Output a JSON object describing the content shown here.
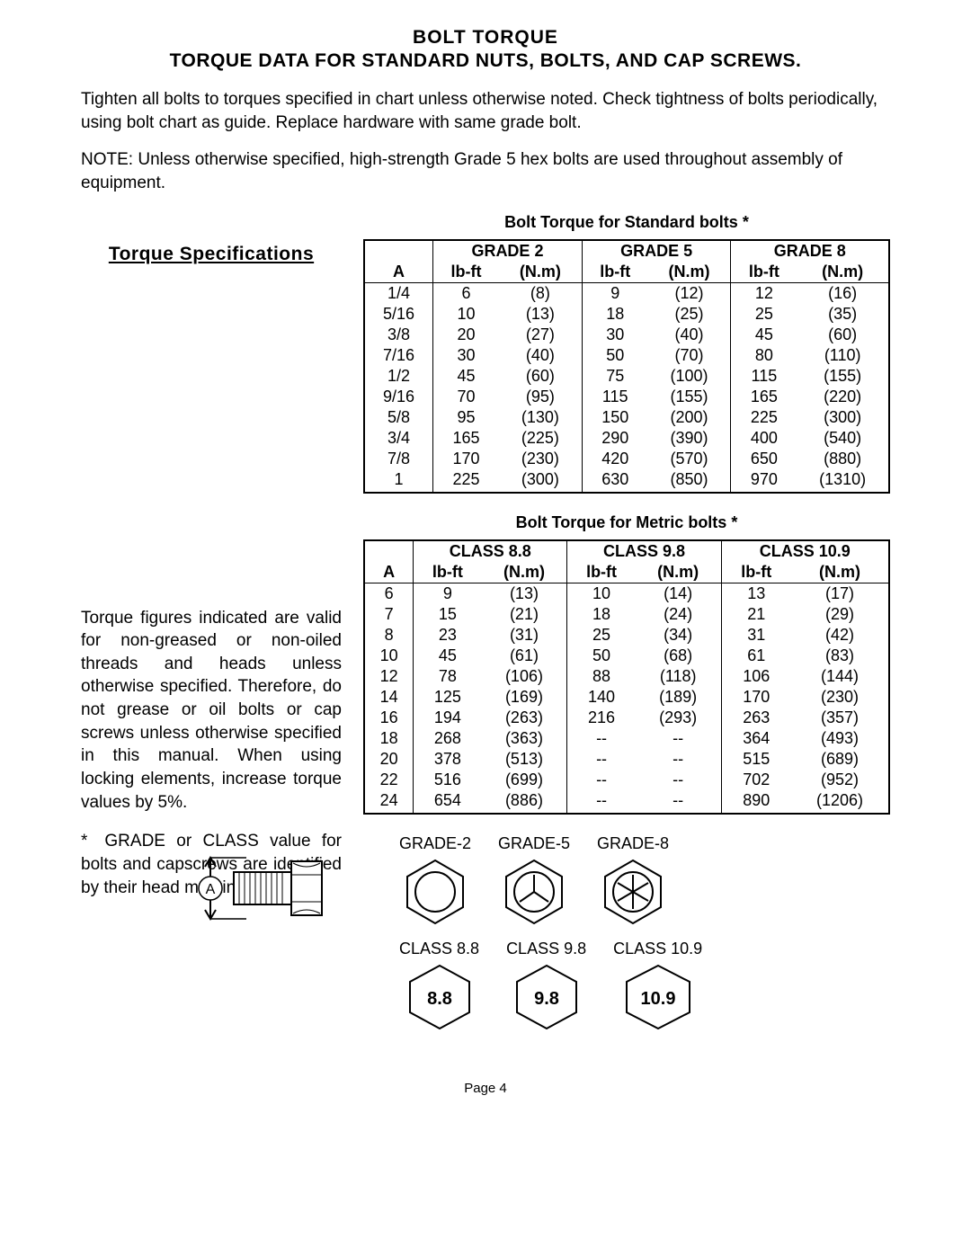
{
  "title": "BOLT TORQUE",
  "subtitle": "TORQUE DATA FOR STANDARD NUTS, BOLTS, AND CAP SCREWS.",
  "intro": "Tighten all bolts to torques specified in chart unless otherwise noted. Check tightness of bolts periodically, using bolt chart as guide.  Replace hardware with same grade bolt.",
  "note_label": "NOTE:",
  "note_body": "Unless otherwise specified, high-strength Grade 5 hex bolts are used throughout assembly of equipment.",
  "spec_heading": "Torque Specifications",
  "std_table_title": "Bolt Torque for Standard bolts *",
  "metric_table_title": "Bolt Torque for Metric bolts *",
  "col_A": "A",
  "col_lbft": "lb-ft",
  "col_Nm": "(N.m)",
  "std_grades": [
    "GRADE 2",
    "GRADE 5",
    "GRADE 8"
  ],
  "std_rows": [
    {
      "a": "1/4",
      "g2l": "6",
      "g2n": "(8)",
      "g5l": "9",
      "g5n": "(12)",
      "g8l": "12",
      "g8n": "(16)"
    },
    {
      "a": "5/16",
      "g2l": "10",
      "g2n": "(13)",
      "g5l": "18",
      "g5n": "(25)",
      "g8l": "25",
      "g8n": "(35)"
    },
    {
      "a": "3/8",
      "g2l": "20",
      "g2n": "(27)",
      "g5l": "30",
      "g5n": "(40)",
      "g8l": "45",
      "g8n": "(60)"
    },
    {
      "a": "7/16",
      "g2l": "30",
      "g2n": "(40)",
      "g5l": "50",
      "g5n": "(70)",
      "g8l": "80",
      "g8n": "(110)"
    },
    {
      "a": "1/2",
      "g2l": "45",
      "g2n": "(60)",
      "g5l": "75",
      "g5n": "(100)",
      "g8l": "115",
      "g8n": "(155)"
    },
    {
      "a": "9/16",
      "g2l": "70",
      "g2n": "(95)",
      "g5l": "115",
      "g5n": "(155)",
      "g8l": "165",
      "g8n": "(220)"
    },
    {
      "a": "5/8",
      "g2l": "95",
      "g2n": "(130)",
      "g5l": "150",
      "g5n": "(200)",
      "g8l": "225",
      "g8n": "(300)"
    },
    {
      "a": "3/4",
      "g2l": "165",
      "g2n": "(225)",
      "g5l": "290",
      "g5n": "(390)",
      "g8l": "400",
      "g8n": "(540)"
    },
    {
      "a": "7/8",
      "g2l": "170",
      "g2n": "(230)",
      "g5l": "420",
      "g5n": "(570)",
      "g8l": "650",
      "g8n": "(880)"
    },
    {
      "a": "1",
      "g2l": "225",
      "g2n": "(300)",
      "g5l": "630",
      "g5n": "(850)",
      "g8l": "970",
      "g8n": "(1310)"
    }
  ],
  "metric_classes": [
    "CLASS 8.8",
    "CLASS 9.8",
    "CLASS 10.9"
  ],
  "metric_rows": [
    {
      "a": "6",
      "c1l": "9",
      "c1n": "(13)",
      "c2l": "10",
      "c2n": "(14)",
      "c3l": "13",
      "c3n": "(17)"
    },
    {
      "a": "7",
      "c1l": "15",
      "c1n": "(21)",
      "c2l": "18",
      "c2n": "(24)",
      "c3l": "21",
      "c3n": "(29)"
    },
    {
      "a": "8",
      "c1l": "23",
      "c1n": "(31)",
      "c2l": "25",
      "c2n": "(34)",
      "c3l": "31",
      "c3n": "(42)"
    },
    {
      "a": "10",
      "c1l": "45",
      "c1n": "(61)",
      "c2l": "50",
      "c2n": "(68)",
      "c3l": "61",
      "c3n": "(83)"
    },
    {
      "a": "12",
      "c1l": "78",
      "c1n": "(106)",
      "c2l": "88",
      "c2n": "(118)",
      "c3l": "106",
      "c3n": "(144)"
    },
    {
      "a": "14",
      "c1l": "125",
      "c1n": "(169)",
      "c2l": "140",
      "c2n": "(189)",
      "c3l": "170",
      "c3n": "(230)"
    },
    {
      "a": "16",
      "c1l": "194",
      "c1n": "(263)",
      "c2l": "216",
      "c2n": "(293)",
      "c3l": "263",
      "c3n": "(357)"
    },
    {
      "a": "18",
      "c1l": "268",
      "c1n": "(363)",
      "c2l": "--",
      "c2n": "--",
      "c3l": "364",
      "c3n": "(493)"
    },
    {
      "a": "20",
      "c1l": "378",
      "c1n": "(513)",
      "c2l": "--",
      "c2n": "--",
      "c3l": "515",
      "c3n": "(689)"
    },
    {
      "a": "22",
      "c1l": "516",
      "c1n": "(699)",
      "c2l": "--",
      "c2n": "--",
      "c3l": "702",
      "c3n": "(952)"
    },
    {
      "a": "24",
      "c1l": "654",
      "c1n": "(886)",
      "c2l": "--",
      "c2n": "--",
      "c3l": "890",
      "c3n": "(1206)"
    }
  ],
  "para1": "Torque figures indicated are valid for non-greased or non-oiled threads and heads unless otherwise specified. Therefore, do not grease or oil bolts or cap screws unless otherwise specified in this manual.  When using locking elements, increase torque values by 5%.",
  "foot1": "* GRADE or CLASS value for bolts and capscrews are identified by their head markings.",
  "bolt_A_label": "A",
  "grade2_label": "GRADE-2",
  "grade5_label": "GRADE-5",
  "grade8_label": "GRADE-8",
  "class88_label": "CLASS 8.8",
  "class98_label": "CLASS 9.8",
  "class109_label": "CLASS 10.9",
  "class88_text": "8.8",
  "class98_text": "9.8",
  "class109_text": "10.9",
  "page_number": "Page 4",
  "colors": {
    "text": "#000000",
    "bg": "#ffffff",
    "border": "#000000"
  }
}
